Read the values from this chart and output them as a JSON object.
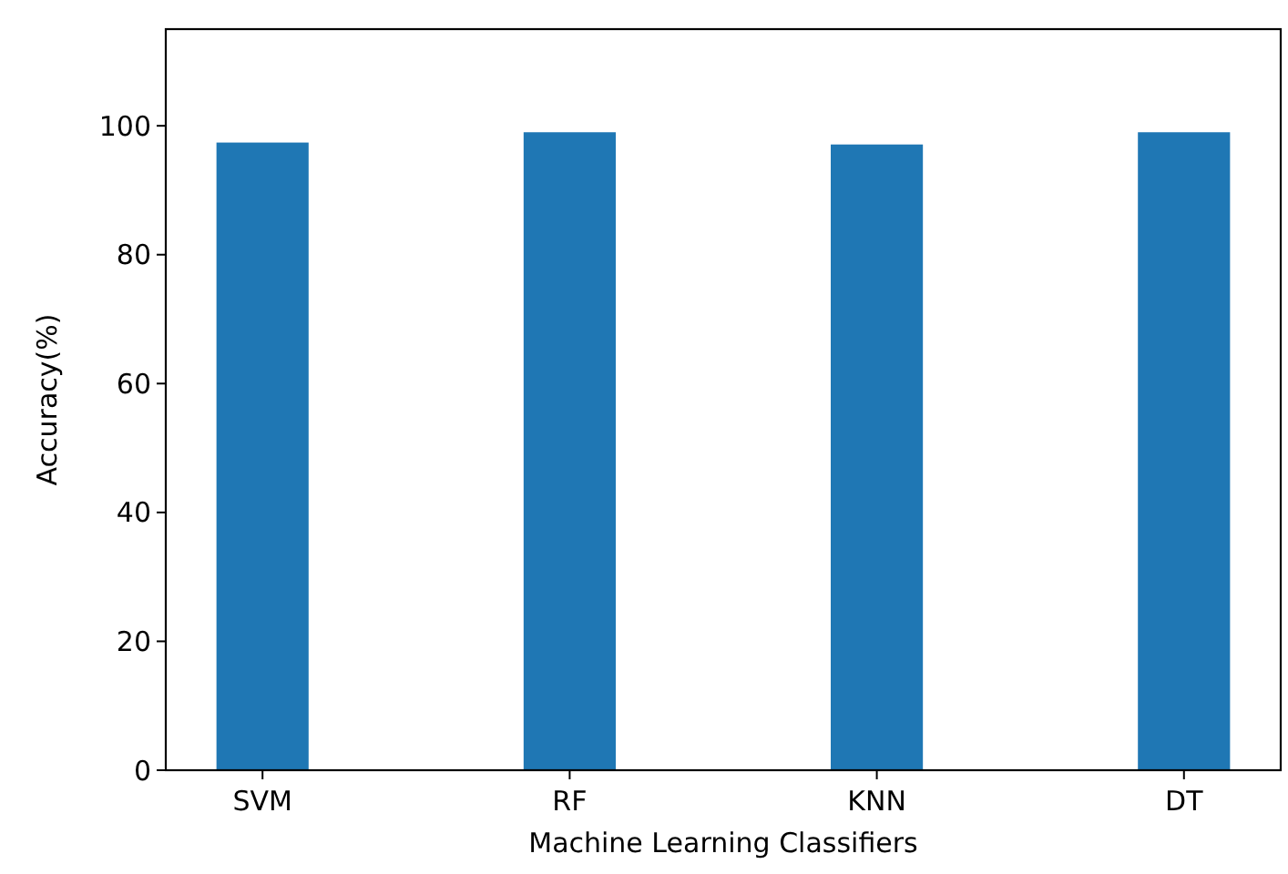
{
  "chart_data": {
    "type": "bar",
    "xlabel": "Machine Learning Classifiers",
    "ylabel": "Accuracy(%)",
    "categories": [
      "SVM",
      "RF",
      "KNN",
      "DT"
    ],
    "values": [
      97.4,
      99.0,
      97.1,
      99.0
    ],
    "color": "#1f77b4",
    "ylim": [
      0,
      115
    ],
    "yticks": [
      0,
      20,
      40,
      60,
      80,
      100
    ],
    "grid": false
  }
}
